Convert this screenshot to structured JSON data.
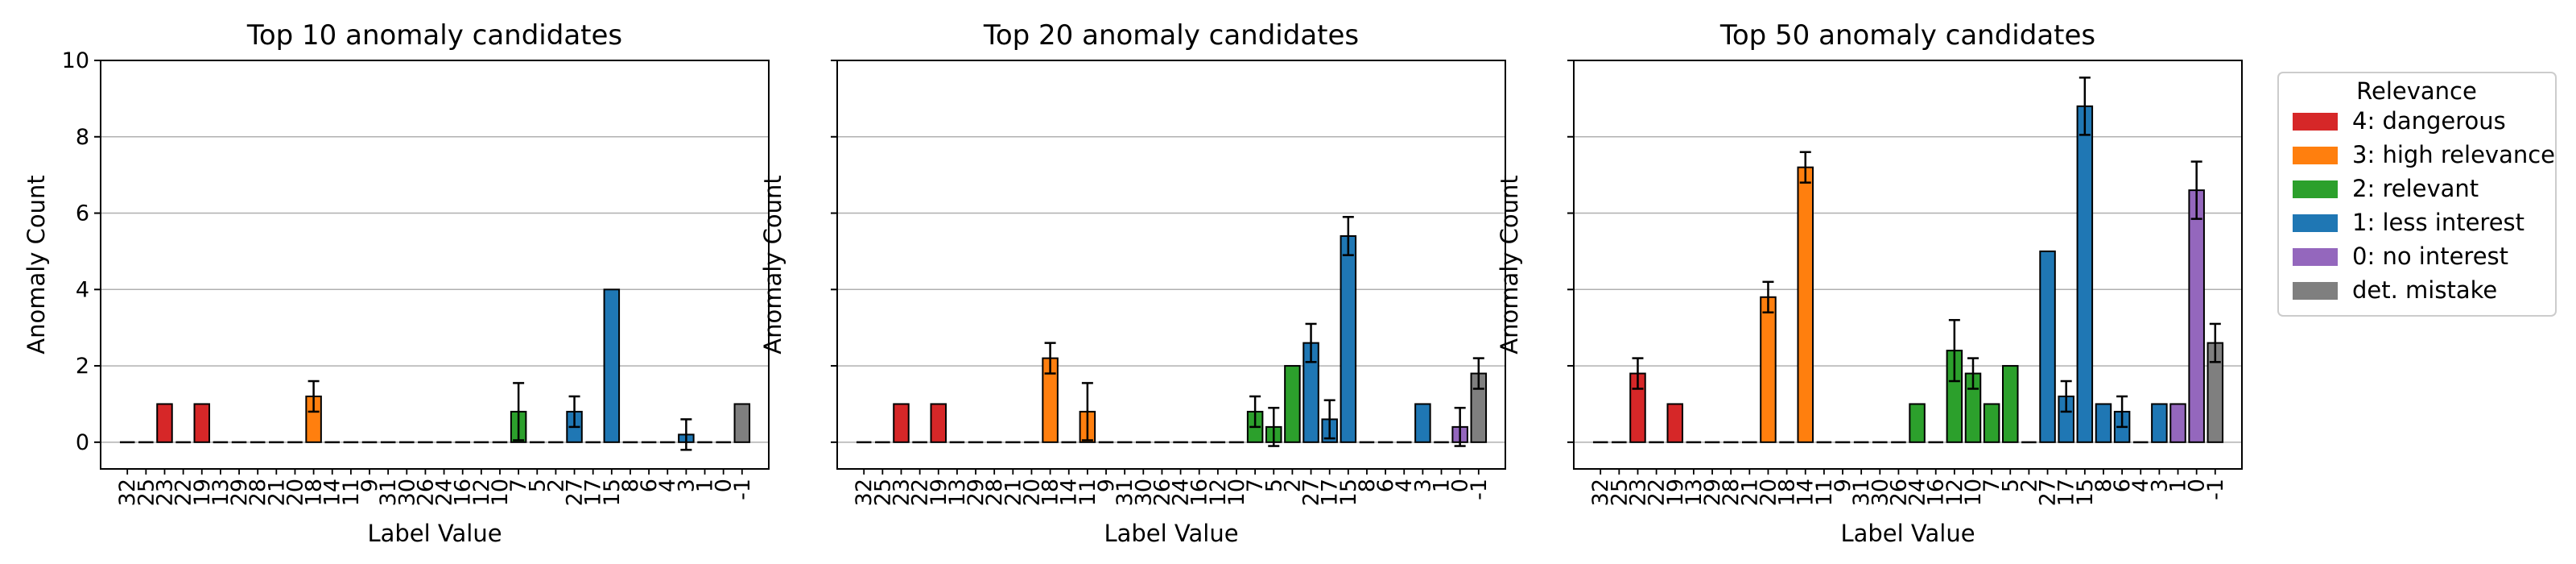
{
  "chart_data": {
    "type": "bar",
    "legend": {
      "title": "Relevance",
      "placement": "right",
      "entries": [
        {
          "label": "4: dangerous",
          "color": "#d62728"
        },
        {
          "label": "3: high relevance",
          "color": "#ff7f0e"
        },
        {
          "label": "2: relevant",
          "color": "#2ca02c"
        },
        {
          "label": "1: less interest",
          "color": "#1f77b4"
        },
        {
          "label": "0: no interest",
          "color": "#9467bd"
        },
        {
          "label": "det. mistake",
          "color": "#7f7f7f"
        }
      ]
    },
    "ylim": [
      -0.7,
      10
    ],
    "yticks": [
      0,
      2,
      4,
      6,
      8,
      10
    ],
    "grid": "y",
    "panels": [
      {
        "title": "Top 10 anomaly candidates",
        "xlabel": "Label Value",
        "ylabel": "Anomaly Count",
        "categories": [
          "32",
          "25",
          "23",
          "22",
          "19",
          "13",
          "29",
          "28",
          "21",
          "20",
          "18",
          "14",
          "11",
          "9",
          "31",
          "30",
          "26",
          "24",
          "16",
          "12",
          "10",
          "7",
          "5",
          "2",
          "27",
          "17",
          "15",
          "8",
          "6",
          "4",
          "3",
          "1",
          "0",
          "-1"
        ],
        "relevance": [
          null,
          null,
          4,
          null,
          4,
          null,
          null,
          null,
          null,
          null,
          3,
          null,
          null,
          null,
          null,
          null,
          null,
          null,
          null,
          null,
          null,
          2,
          null,
          null,
          1,
          null,
          1,
          null,
          null,
          null,
          1,
          null,
          null,
          -1
        ],
        "values": [
          0,
          0,
          1,
          0,
          1,
          0,
          0,
          0,
          0,
          0,
          1.2,
          0,
          0,
          0,
          0,
          0,
          0,
          0,
          0,
          0,
          0,
          0.8,
          0,
          0,
          0.8,
          0,
          4,
          0,
          0,
          0,
          0.2,
          0,
          0,
          1
        ],
        "errors": [
          0,
          0,
          0,
          0,
          0,
          0,
          0,
          0,
          0,
          0,
          0.4,
          0,
          0,
          0,
          0,
          0,
          0,
          0,
          0,
          0,
          0,
          0.75,
          0,
          0,
          0.4,
          0,
          0,
          0,
          0,
          0,
          0.4,
          0,
          0,
          0
        ]
      },
      {
        "title": "Top 20 anomaly candidates",
        "xlabel": "Label Value",
        "ylabel": "Anomaly Count",
        "categories": [
          "32",
          "25",
          "23",
          "22",
          "19",
          "13",
          "29",
          "28",
          "21",
          "20",
          "18",
          "14",
          "11",
          "9",
          "31",
          "30",
          "26",
          "24",
          "16",
          "12",
          "10",
          "7",
          "5",
          "2",
          "27",
          "17",
          "15",
          "8",
          "6",
          "4",
          "3",
          "1",
          "0",
          "-1"
        ],
        "relevance": [
          null,
          null,
          4,
          null,
          4,
          null,
          null,
          null,
          null,
          null,
          3,
          null,
          3,
          null,
          null,
          null,
          null,
          null,
          null,
          null,
          null,
          2,
          2,
          2,
          1,
          null,
          1,
          null,
          null,
          null,
          1,
          null,
          0,
          -1
        ],
        "values": [
          0,
          0,
          1,
          0,
          1,
          0,
          0,
          0,
          0,
          0,
          2.2,
          0,
          0.8,
          0,
          0,
          0,
          0,
          0,
          0,
          0,
          0,
          0.8,
          0.4,
          2,
          2.6,
          0.6,
          5.4,
          0,
          0,
          0,
          1,
          0,
          0.4,
          1.8
        ],
        "errors": [
          0,
          0,
          0,
          0,
          0,
          0,
          0,
          0,
          0,
          0,
          0.4,
          0,
          0.75,
          0,
          0,
          0,
          0,
          0,
          0,
          0,
          0,
          0.4,
          0.5,
          0,
          0.5,
          0.5,
          0.5,
          0,
          0,
          0,
          0,
          0,
          0.5,
          0.4
        ]
      },
      {
        "title": "Top 50 anomaly candidates",
        "xlabel": "Label Value",
        "ylabel": "Anomaly Count",
        "categories": [
          "32",
          "25",
          "23",
          "22",
          "19",
          "13",
          "29",
          "28",
          "21",
          "20",
          "18",
          "14",
          "11",
          "9",
          "31",
          "30",
          "26",
          "24",
          "16",
          "12",
          "10",
          "7",
          "5",
          "2",
          "27",
          "17",
          "15",
          "8",
          "6",
          "4",
          "3",
          "1",
          "0",
          "-1"
        ],
        "relevance": [
          null,
          null,
          4,
          null,
          4,
          null,
          null,
          null,
          null,
          3,
          null,
          3,
          null,
          null,
          null,
          null,
          null,
          2,
          null,
          2,
          2,
          2,
          2,
          null,
          1,
          1,
          1,
          1,
          1,
          null,
          1,
          0,
          0,
          -1
        ],
        "values": [
          0,
          0,
          1.8,
          0,
          1,
          0,
          0,
          0,
          0,
          3.8,
          0,
          7.2,
          0,
          0,
          0,
          0,
          0,
          1,
          0,
          2.4,
          1.8,
          1,
          2,
          0,
          5,
          1.2,
          8.8,
          1,
          0.8,
          0,
          1,
          1,
          6.6,
          2.6
        ],
        "errors": [
          0,
          0,
          0.4,
          0,
          0,
          0,
          0,
          0,
          0,
          0.4,
          0,
          0.4,
          0,
          0,
          0,
          0,
          0,
          0,
          0,
          0.8,
          0.4,
          0,
          0,
          0,
          0,
          0.4,
          0.75,
          0,
          0.4,
          0,
          0,
          0,
          0.75,
          0.5
        ]
      }
    ]
  }
}
